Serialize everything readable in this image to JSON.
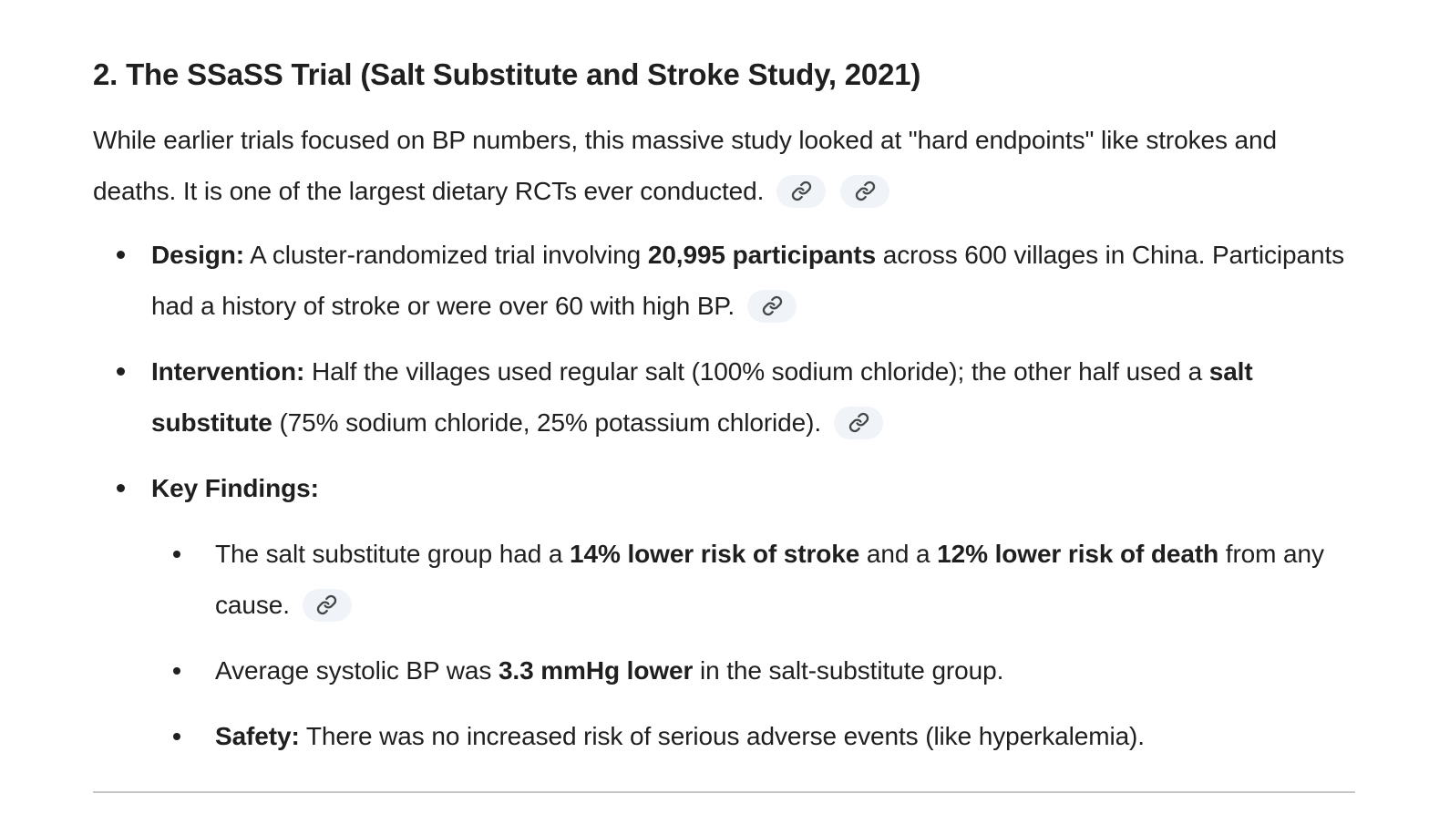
{
  "colors": {
    "text": "#1f1f1f",
    "chip_background": "#f0f4f9",
    "chip_icon": "#444746",
    "divider": "#c4c7c5",
    "background": "#ffffff"
  },
  "icons": {
    "chip_icon_name": "link-icon"
  },
  "heading": {
    "text": "2. The SSaSS Trial (Salt Substitute and Stroke Study, 2021)"
  },
  "intro": {
    "segments": [
      {
        "text": "While earlier trials focused on BP numbers, this massive study looked at \"hard endpoints\" like strokes and deaths. It is one of the largest dietary RCTs ever conducted.",
        "bold": false
      }
    ],
    "chip_count": 2
  },
  "list": {
    "design": {
      "segments": [
        {
          "text": "Design:",
          "bold": true
        },
        {
          "text": " A cluster-randomized trial involving ",
          "bold": false
        },
        {
          "text": "20,995 participants",
          "bold": true
        },
        {
          "text": " across 600 villages in China. Participants had a history of stroke or were over 60 with high BP.",
          "bold": false
        }
      ],
      "chip_count": 1
    },
    "intervention": {
      "segments": [
        {
          "text": "Intervention:",
          "bold": true
        },
        {
          "text": " Half the villages used regular salt (100% sodium chloride); the other half used a ",
          "bold": false
        },
        {
          "text": "salt substitute",
          "bold": true
        },
        {
          "text": " (75% sodium chloride, 25% potassium chloride).",
          "bold": false
        }
      ],
      "chip_count": 1
    },
    "key_findings": {
      "segments": [
        {
          "text": "Key Findings:",
          "bold": true
        }
      ],
      "chip_count": 0,
      "children": {
        "stroke_death": {
          "segments": [
            {
              "text": "The salt substitute group had a ",
              "bold": false
            },
            {
              "text": "14% lower risk of stroke",
              "bold": true
            },
            {
              "text": " and a ",
              "bold": false
            },
            {
              "text": "12% lower risk of death",
              "bold": true
            },
            {
              "text": " from any cause.",
              "bold": false
            }
          ],
          "chip_count": 1
        },
        "systolic_bp": {
          "segments": [
            {
              "text": "Average systolic BP was ",
              "bold": false
            },
            {
              "text": "3.3 mmHg lower",
              "bold": true
            },
            {
              "text": " in the salt-substitute group.",
              "bold": false
            }
          ],
          "chip_count": 0
        },
        "safety": {
          "segments": [
            {
              "text": "Safety:",
              "bold": true
            },
            {
              "text": " There was no increased risk of serious adverse events (like hyperkalemia).",
              "bold": false
            }
          ],
          "chip_count": 0
        }
      }
    }
  }
}
